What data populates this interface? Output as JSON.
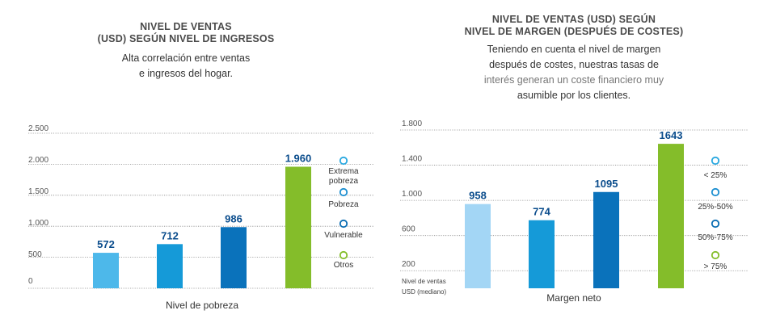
{
  "left": {
    "title_line1": "NIVEL DE VENTAS",
    "title_line2": "(USD) SEGÚN NIVEL DE INGRESOS",
    "subtitle_line1": "Alta correlación entre ventas",
    "subtitle_line2": "e ingresos del hogar.",
    "legend": [
      "Extrema pobreza",
      "Pobreza",
      "Vulnerable",
      "Otros"
    ]
  },
  "right": {
    "title_line1": "NIVEL DE VENTAS (USD) SEGÚN",
    "title_line2": "NIVEL DE MARGEN (DESPUÉS DE COSTES)",
    "subtitle_line1": "Teniendo en cuenta el nivel de margen",
    "subtitle_line2": "después de costes, nuestras tasas de",
    "subtitle_line3": "interés generan un coste financiero muy",
    "subtitle_line4": "asumible por los clientes.",
    "y_note_line1": "Nivel de ventas",
    "y_note_line2": "USD (mediano)",
    "legend": [
      "< 25%",
      "25%-50%",
      "50%-75%",
      "> 75%"
    ]
  },
  "chart_data": [
    {
      "type": "bar",
      "categories": [
        "Extrema pobreza",
        "Pobreza",
        "Vulnerable",
        "Otros"
      ],
      "values": [
        572,
        712,
        986,
        1960
      ],
      "value_labels": [
        "572",
        "712",
        "986",
        "1.960"
      ],
      "colors": [
        "#4db8ea",
        "#159ad8",
        "#0a72bb",
        "#84bd2a"
      ],
      "legend_colors": [
        "#29a8e0",
        "#1b8ed0",
        "#0a6db3",
        "#84bd2a"
      ],
      "xlabel": "Nivel de pobreza",
      "ylim": [
        0,
        2500
      ],
      "yticks": [
        0,
        500,
        1000,
        1500,
        2000,
        2500
      ],
      "ytick_labels": [
        "0",
        "500",
        "1.000",
        "1.500",
        "2.000",
        "2.500"
      ],
      "legend_placement": "right"
    },
    {
      "type": "bar",
      "categories": [
        "< 25%",
        "25%-50%",
        "50%-75%",
        "> 75%"
      ],
      "values": [
        958,
        774,
        1095,
        1643
      ],
      "value_labels": [
        "958",
        "774",
        "1095",
        "1643"
      ],
      "colors": [
        "#a3d6f5",
        "#159ad8",
        "#0a72bb",
        "#84bd2a"
      ],
      "legend_colors": [
        "#29a8e0",
        "#1b8ed0",
        "#0a6db3",
        "#84bd2a"
      ],
      "xlabel": "Margen neto",
      "ylim": [
        0,
        1800
      ],
      "yticks": [
        200,
        600,
        1000,
        1400,
        1800
      ],
      "ytick_labels": [
        "200",
        "600",
        "1.000",
        "1.400",
        "1.800"
      ],
      "legend_placement": "right"
    }
  ]
}
